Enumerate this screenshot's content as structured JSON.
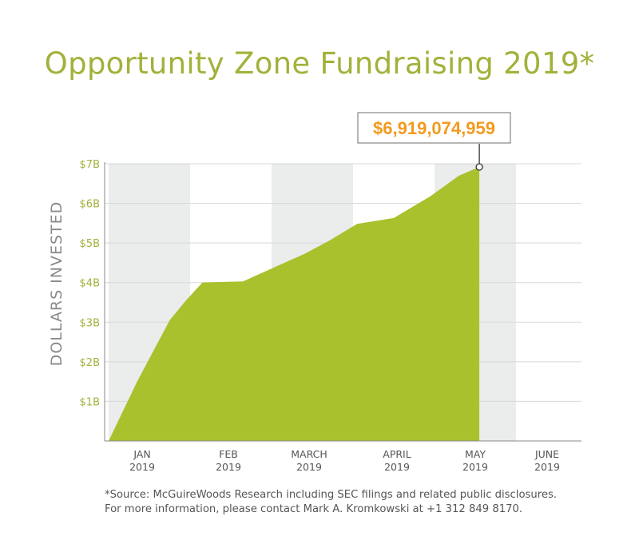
{
  "title": "Opportunity Zone Fundraising 2019*",
  "colors": {
    "accent": "#a9c12c",
    "title": "#a3b13b",
    "callout": "#f39a1e",
    "band": "#ebecec",
    "grid": "#d7d8d8",
    "axis_text": "#555555"
  },
  "chart_data": {
    "type": "area",
    "title": "Opportunity Zone Fundraising 2019*",
    "ylabel": "DOLLARS INVESTED",
    "xlabel": "",
    "ylim": [
      0,
      7
    ],
    "y_unit": "billions USD",
    "y_ticks": [
      "$1B",
      "$2B",
      "$3B",
      "$4B",
      "$5B",
      "$6B",
      "$7B"
    ],
    "x_ticks": [
      {
        "month": "JAN",
        "year": "2019"
      },
      {
        "month": "FEB",
        "year": "2019"
      },
      {
        "month": "MARCH",
        "year": "2019"
      },
      {
        "month": "APRIL",
        "year": "2019"
      },
      {
        "month": "MAY",
        "year": "2019"
      },
      {
        "month": "JUNE",
        "year": "2019"
      }
    ],
    "x_unit": "months from start of January 2019",
    "x": [
      0,
      0.35,
      0.75,
      0.95,
      1.15,
      1.65,
      2.05,
      2.4,
      2.7,
      3.05,
      3.5,
      3.95,
      4.3,
      4.55
    ],
    "y": [
      0,
      1.5,
      3.05,
      3.55,
      4.0,
      4.03,
      4.4,
      4.72,
      5.05,
      5.48,
      5.63,
      6.18,
      6.7,
      6.919
    ],
    "grid": true,
    "alternating_bands": true,
    "annotation": {
      "label": "$6,919,074,959",
      "x": 4.55,
      "y": 6.919
    }
  },
  "footnote": {
    "line1": "*Source: McGuireWoods Research including SEC filings and related public disclosures.",
    "line2": "For more information, please contact Mark A. Kromkowski at +1 312 849 8170."
  }
}
